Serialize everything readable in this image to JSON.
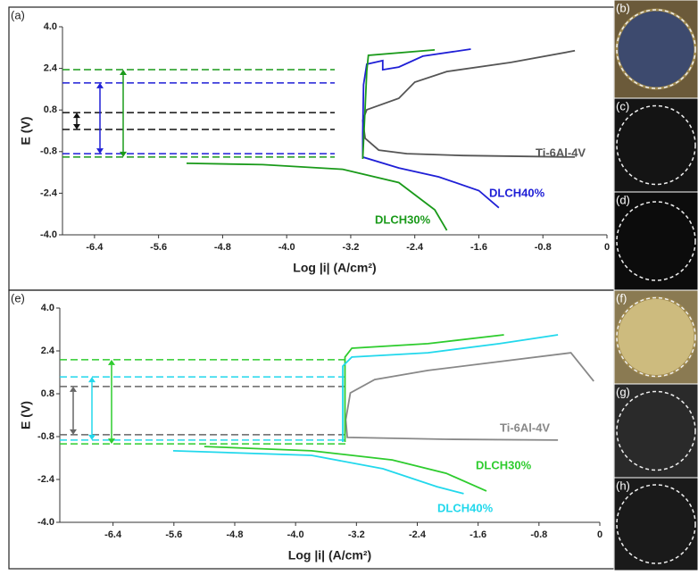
{
  "chart_data": [
    {
      "type": "line",
      "panel": "(a)",
      "x_label": "Log |i| (A/cm²)",
      "y_label": "E (V)",
      "xlim": [
        -6.8,
        0
      ],
      "ylim": [
        -4,
        4
      ],
      "xticks": [
        -6.4,
        -5.6,
        -4.8,
        {
          "value": -4,
          "label": "-4.0"
        },
        -3.2,
        -2.4,
        -1.6,
        -0.8,
        0
      ],
      "yticks": [
        {
          "value": 4,
          "label": "4.0"
        },
        2.4,
        0.8,
        -0.8,
        -2.4,
        {
          "value": -4,
          "label": "-4.0"
        }
      ],
      "series": [
        {
          "name": "Ti-6Al-4V",
          "color": "#555555",
          "x": [
            -0.4,
            -1.8,
            -2.5,
            -2.85,
            -3.02,
            -3.05,
            -3.0,
            -2.6,
            -2.4,
            -2.0,
            -1.2,
            -0.4
          ],
          "values": [
            -1.01,
            -0.95,
            -0.88,
            -0.74,
            -0.29,
            0.4,
            0.81,
            1.25,
            1.87,
            2.28,
            2.63,
            3.08
          ]
        },
        {
          "name": "DLCH40%",
          "color": "#1f1fd6",
          "x": [
            -1.35,
            -1.6,
            -2.1,
            -2.6,
            -3.05,
            -3.05,
            -3.04,
            -3.0,
            -2.8,
            -2.8,
            -2.6,
            -2.3,
            -1.7
          ],
          "values": [
            -2.96,
            -2.3,
            -1.77,
            -1.43,
            -1.01,
            -0.12,
            1.77,
            2.56,
            2.7,
            2.35,
            2.45,
            2.87,
            3.14
          ]
        },
        {
          "name": "DLCH30%",
          "color": "#1a9a1a",
          "x": [
            -2.0,
            -2.15,
            -2.6,
            -3.3,
            -4.3,
            -5.25,
            null,
            -3.05,
            -3.02,
            -3.0,
            -2.98,
            -2.15
          ],
          "values": [
            -3.83,
            -3.04,
            -1.99,
            -1.48,
            -1.3,
            -1.25,
            null,
            -1.08,
            0.91,
            2.29,
            2.9,
            3.11
          ]
        }
      ],
      "hlines": [
        {
          "color": "#111111",
          "values": [
            0.7,
            0.05
          ]
        },
        {
          "color": "#1f1fd6",
          "values": [
            1.84,
            -0.88
          ]
        },
        {
          "color": "#1a9a1a",
          "values": [
            2.35,
            -1.01
          ]
        }
      ],
      "photo_labels": [
        "(b)",
        "(c)",
        "(d)"
      ]
    },
    {
      "type": "line",
      "panel": "(e)",
      "x_label": "Log |i| (A/cm²)",
      "y_label": "E (V)",
      "xlim": [
        -7.1,
        0
      ],
      "ylim": [
        -4,
        4
      ],
      "xticks": [
        -6.4,
        -5.6,
        -4.8,
        {
          "value": -4,
          "label": "-4.0"
        },
        -3.2,
        -2.4,
        -1.6,
        -0.8,
        0
      ],
      "yticks": [
        {
          "value": 4,
          "label": "4.0"
        },
        2.4,
        0.8,
        -0.8,
        -2.4,
        {
          "value": -4,
          "label": "-4.0"
        }
      ],
      "series": [
        {
          "name": "Ti-6Al-4V",
          "color": "#888888",
          "x": [
            -0.55,
            -2.02,
            -3.32,
            -3.34,
            -3.28,
            -2.96,
            -2.26,
            -1.32,
            -0.38,
            -0.08
          ],
          "values": [
            -0.93,
            -0.9,
            -0.83,
            -0.17,
            0.83,
            1.33,
            1.67,
            2.0,
            2.33,
            1.27
          ]
        },
        {
          "name": "DLCH30%",
          "color": "#2ecc2e",
          "x": [
            -5.2,
            -3.79,
            -2.73,
            -2.02,
            -1.49,
            null,
            -3.35,
            -3.35,
            -3.26,
            -2.26,
            -1.26
          ],
          "values": [
            -1.17,
            -1.33,
            -1.67,
            -2.17,
            -2.83,
            null,
            -1.0,
            2.17,
            2.5,
            2.67,
            3.0
          ]
        },
        {
          "name": "DLCH40%",
          "color": "#22d8ec",
          "x": [
            -5.61,
            -3.79,
            -2.85,
            -2.14,
            -1.79,
            null,
            -3.38,
            -3.38,
            -3.26,
            -2.26,
            -1.32,
            -0.55
          ],
          "values": [
            -1.33,
            -1.5,
            -2.0,
            -2.67,
            -2.93,
            null,
            -1.0,
            1.83,
            2.17,
            2.33,
            2.67,
            3.0
          ]
        }
      ],
      "hlines": [
        {
          "color": "#666666",
          "values": [
            1.07,
            -0.73
          ]
        },
        {
          "color": "#22d8ec",
          "values": [
            1.43,
            -0.93
          ]
        },
        {
          "color": "#2ecc2e",
          "values": [
            2.07,
            -1.07
          ]
        }
      ],
      "photo_labels": [
        "(f)",
        "(g)",
        "(h)"
      ]
    }
  ]
}
